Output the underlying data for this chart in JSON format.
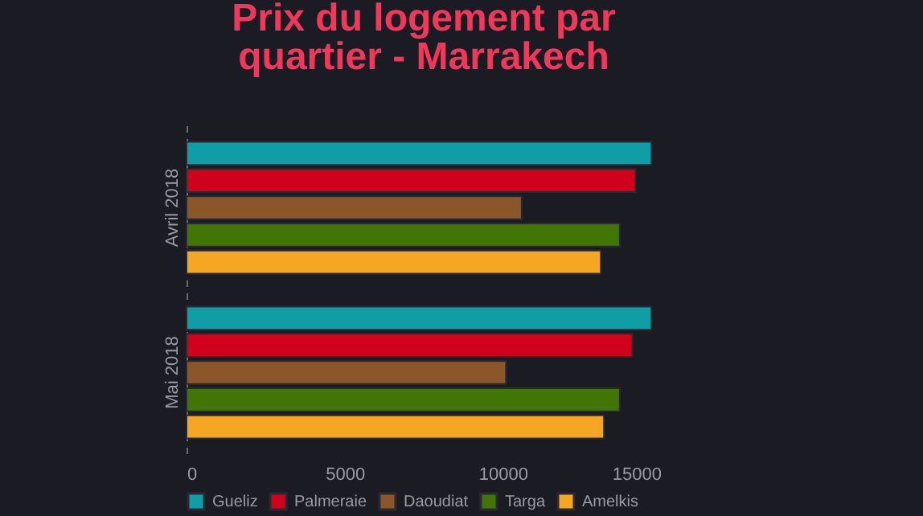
{
  "chart_data": {
    "type": "bar",
    "orientation": "horizontal",
    "title": "Prix du logement par quartier - Marrakech",
    "categories": [
      "Avril 2018",
      "Mai 2018"
    ],
    "series": [
      {
        "name": "Gueliz",
        "color": "#0f9ea5",
        "values": [
          14700,
          14700
        ]
      },
      {
        "name": "Palmeraie",
        "color": "#d0021b",
        "values": [
          14200,
          14100
        ]
      },
      {
        "name": "Daoudiat",
        "color": "#8b572a",
        "values": [
          10600,
          10100
        ]
      },
      {
        "name": "Targa",
        "color": "#417505",
        "values": [
          13700,
          13700
        ]
      },
      {
        "name": "Amelkis",
        "color": "#f5a623",
        "values": [
          13100,
          13200
        ]
      }
    ],
    "xlim": [
      0,
      15000
    ],
    "xticks": [
      0,
      5000,
      10000,
      15000
    ],
    "grid": false,
    "legend": "bottom"
  }
}
